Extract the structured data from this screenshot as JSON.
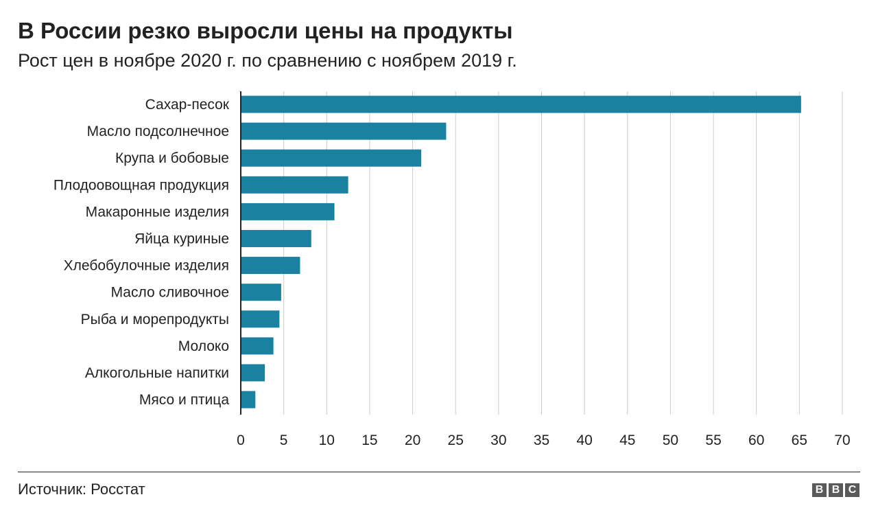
{
  "title": "В России резко выросли цены на продукты",
  "subtitle": "Рост цен в ноябре 2020 г. по сравнению с ноябрем 2019 г.",
  "source": "Источник: Росстат",
  "logo": {
    "letters": [
      "B",
      "B",
      "C"
    ]
  },
  "colors": {
    "bar": "#1b81a1",
    "grid": "#cccccc",
    "axis": "#222222",
    "text": "#222222",
    "logo": "#5a5a5a"
  },
  "chart_data": {
    "type": "bar",
    "orientation": "horizontal",
    "categories": [
      "Сахар-песок",
      "Масло подсолнечное",
      "Крупа и бобовые",
      "Плодоовощная продукция",
      "Макаронные изделия",
      "Яйца куриные",
      "Хлебобулочные изделия",
      "Масло сливочное",
      "Рыба и морепродукты",
      "Молоко",
      "Алкогольные напитки",
      "Мясо и птица"
    ],
    "values": [
      65.2,
      23.9,
      21.0,
      12.5,
      10.9,
      8.2,
      6.9,
      4.7,
      4.5,
      3.8,
      2.8,
      1.7
    ],
    "xlim": [
      0,
      70
    ],
    "xticks": [
      0,
      5,
      10,
      15,
      20,
      25,
      30,
      35,
      40,
      45,
      50,
      55,
      60,
      65,
      70
    ],
    "xlabel": "",
    "ylabel": "",
    "grid": "vertical"
  }
}
